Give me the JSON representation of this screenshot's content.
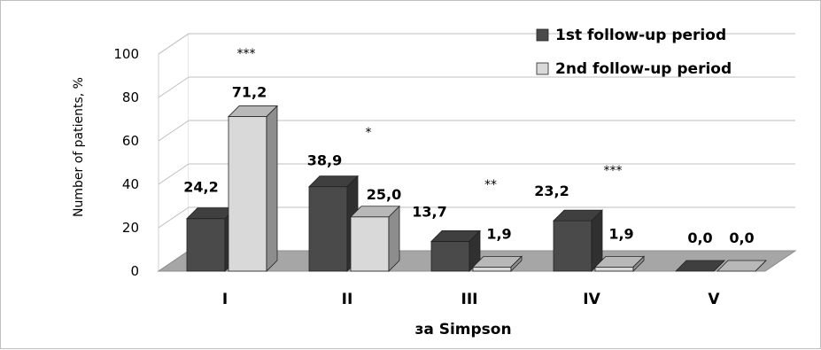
{
  "chart_data": {
    "type": "bar",
    "categories": [
      "I",
      "II",
      "III",
      "IV",
      "V"
    ],
    "series": [
      {
        "name": "1st follow-up period",
        "values": [
          24.2,
          38.9,
          13.7,
          23.2,
          0.0
        ],
        "labels": [
          "24,2",
          "38,9",
          "13,7",
          "23,2",
          "0,0"
        ],
        "color": "#4a4a4a"
      },
      {
        "name": "2nd follow-up period",
        "values": [
          71.2,
          25.0,
          1.9,
          1.9,
          0.0
        ],
        "labels": [
          "71,2",
          "25,0",
          "1,9",
          "1,9",
          "0,0"
        ],
        "color": "#d9d9d9"
      }
    ],
    "significance": [
      "***",
      "*",
      "**",
      "***",
      ""
    ],
    "xlabel": "за Simpson",
    "ylabel": "Number of patients, %",
    "ylim": [
      0,
      100
    ],
    "yticks": [
      "0",
      "20",
      "40",
      "60",
      "80",
      "100"
    ],
    "grid": true,
    "legend_position": "top-right",
    "style": "3d-clustered-bar"
  }
}
